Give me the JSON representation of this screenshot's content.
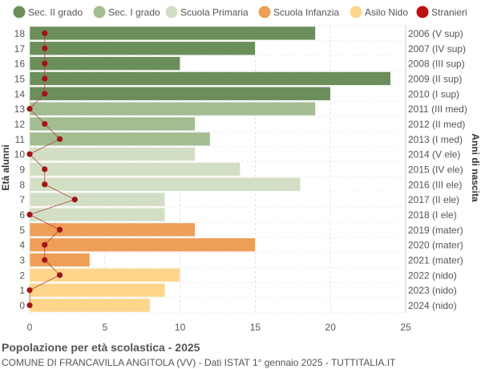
{
  "chart_data": {
    "type": "bar",
    "orientation": "horizontal",
    "title": "Popolazione per età scolastica - 2025",
    "subtitle": "COMUNE DI FRANCAVILLA ANGITOLA (VV) - Dati ISTAT 1° gennaio 2025 - TUTTITALIA.IT",
    "ylabel_left": "Età alunni",
    "ylabel_right": "Anni di nascita",
    "xlim": [
      0,
      25
    ],
    "xticks": [
      0,
      5,
      10,
      15,
      20,
      25
    ],
    "grid": true,
    "legend_position": "top",
    "legend": [
      {
        "label": "Sec. II grado",
        "color": "#6b8e5a"
      },
      {
        "label": "Sec. I grado",
        "color": "#a3bd92"
      },
      {
        "label": "Scuola Primaria",
        "color": "#d3dfc5"
      },
      {
        "label": "Scuola Infanzia",
        "color": "#ee9e57"
      },
      {
        "label": "Asilo Nido",
        "color": "#fdd68c"
      },
      {
        "label": "Stranieri",
        "color": "#bb1111"
      }
    ],
    "rows": [
      {
        "age": "18",
        "birth": "2006 (V sup)",
        "value": 19,
        "stranieri": 1,
        "group": 0
      },
      {
        "age": "17",
        "birth": "2007 (IV sup)",
        "value": 15,
        "stranieri": 1,
        "group": 0
      },
      {
        "age": "16",
        "birth": "2008 (III sup)",
        "value": 10,
        "stranieri": 1,
        "group": 0
      },
      {
        "age": "15",
        "birth": "2009 (II sup)",
        "value": 24,
        "stranieri": 1,
        "group": 0
      },
      {
        "age": "14",
        "birth": "2010 (I sup)",
        "value": 20,
        "stranieri": 1,
        "group": 0
      },
      {
        "age": "13",
        "birth": "2011 (III med)",
        "value": 19,
        "stranieri": 0,
        "group": 1
      },
      {
        "age": "12",
        "birth": "2012 (II med)",
        "value": 11,
        "stranieri": 1,
        "group": 1
      },
      {
        "age": "11",
        "birth": "2013 (I med)",
        "value": 12,
        "stranieri": 2,
        "group": 1
      },
      {
        "age": "10",
        "birth": "2014 (V ele)",
        "value": 11,
        "stranieri": 0,
        "group": 2
      },
      {
        "age": "9",
        "birth": "2015 (IV ele)",
        "value": 14,
        "stranieri": 1,
        "group": 2
      },
      {
        "age": "8",
        "birth": "2016 (III ele)",
        "value": 18,
        "stranieri": 1,
        "group": 2
      },
      {
        "age": "7",
        "birth": "2017 (II ele)",
        "value": 9,
        "stranieri": 3,
        "group": 2
      },
      {
        "age": "6",
        "birth": "2018 (I ele)",
        "value": 9,
        "stranieri": 0,
        "group": 2
      },
      {
        "age": "5",
        "birth": "2019 (mater)",
        "value": 11,
        "stranieri": 2,
        "group": 3
      },
      {
        "age": "4",
        "birth": "2020 (mater)",
        "value": 15,
        "stranieri": 1,
        "group": 3
      },
      {
        "age": "3",
        "birth": "2021 (mater)",
        "value": 4,
        "stranieri": 1,
        "group": 3
      },
      {
        "age": "2",
        "birth": "2022 (nido)",
        "value": 10,
        "stranieri": 2,
        "group": 4
      },
      {
        "age": "1",
        "birth": "2023 (nido)",
        "value": 9,
        "stranieri": 0,
        "group": 4
      },
      {
        "age": "0",
        "birth": "2024 (nido)",
        "value": 8,
        "stranieri": 0,
        "group": 4
      }
    ]
  }
}
